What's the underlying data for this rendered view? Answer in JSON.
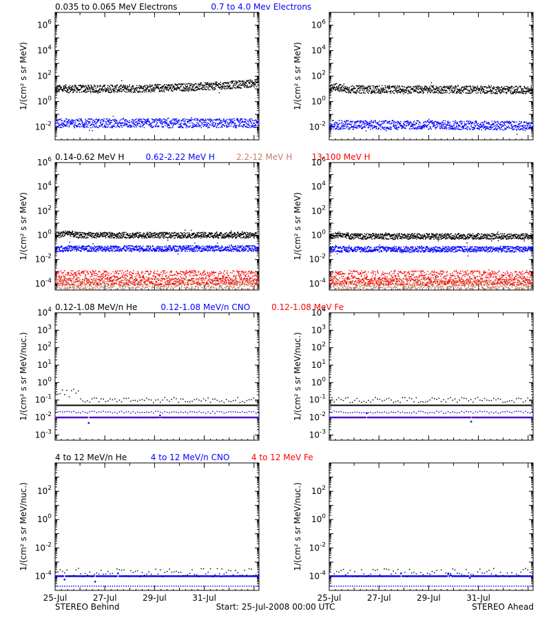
{
  "footer": {
    "left": "STEREO Behind",
    "center": "Start: 25-Jul-2008 00:00 UTC",
    "right": "STEREO Ahead"
  },
  "colors": {
    "black": "#000000",
    "blue": "#0000ff",
    "tan": "#c08060",
    "red": "#ff0000"
  },
  "chart_data": [
    {
      "type": "scatter",
      "id": "electrons",
      "legend": [
        {
          "text": "0.035 to 0.065 MeV Electrons",
          "color": "#000000"
        },
        {
          "text": "0.7 to 4.0 Mev Electrons",
          "color": "#0000ff"
        }
      ],
      "ylabel": "1/(cm² s sr MeV)",
      "yscale": "log",
      "ylim": [
        0.001,
        10000000
      ],
      "yticks": [
        {
          "exp": "-2",
          "v": 0.01
        },
        {
          "exp": "0",
          "v": 1
        },
        {
          "exp": "2",
          "v": 100
        },
        {
          "exp": "4",
          "v": 10000
        },
        {
          "exp": "6",
          "v": 1000000
        }
      ],
      "x_date_start": "25-Jul-2008",
      "xlim_days": [
        0,
        8.2
      ],
      "xticks": [
        "25-Jul",
        "27-Jul",
        "29-Jul",
        "31-Jul"
      ],
      "panels": [
        {
          "spacecraft": "STEREO Behind",
          "series": [
            {
              "color": "#000000",
              "base": 10,
              "end": 30,
              "spread": 0.1
            },
            {
              "color": "#0000ff",
              "base": 0.02,
              "end": 0.02,
              "spread": 0.12
            }
          ]
        },
        {
          "spacecraft": "STEREO Ahead",
          "series": [
            {
              "color": "#000000",
              "base": 9,
              "end": 8,
              "spread": 0.1,
              "spike": 20
            },
            {
              "color": "#0000ff",
              "base": 0.015,
              "end": 0.012,
              "spread": 0.12
            }
          ]
        }
      ]
    },
    {
      "type": "scatter",
      "id": "protons",
      "legend": [
        {
          "text": "0.14-0.62 MeV H",
          "color": "#000000"
        },
        {
          "text": "0.62-2.22 MeV H",
          "color": "#0000ff"
        },
        {
          "text": "2.2-12 MeV H",
          "color": "#c08060"
        },
        {
          "text": "13-100 MeV H",
          "color": "#ff0000"
        }
      ],
      "ylabel": "1/(cm² s sr MeV)",
      "yscale": "log",
      "ylim": [
        3e-05,
        1000000
      ],
      "yticks": [
        {
          "exp": "-4",
          "v": 0.0001
        },
        {
          "exp": "-2",
          "v": 0.01
        },
        {
          "exp": "0",
          "v": 1
        },
        {
          "exp": "2",
          "v": 100
        },
        {
          "exp": "4",
          "v": 10000
        },
        {
          "exp": "6",
          "v": 1000000
        }
      ],
      "x_date_start": "25-Jul-2008",
      "xlim_days": [
        0,
        8.2
      ],
      "xticks": [
        "25-Jul",
        "27-Jul",
        "29-Jul",
        "31-Jul"
      ],
      "panels": [
        {
          "spacecraft": "STEREO Behind",
          "series": [
            {
              "color": "#000000",
              "base": 1.0,
              "end": 1.0,
              "spread": 0.08,
              "bump": 2
            },
            {
              "color": "#0000ff",
              "base": 0.08,
              "end": 0.08,
              "spread": 0.08
            },
            {
              "color": "#c08060",
              "base": 0.0001,
              "end": 0.0001,
              "spread": 0.15
            },
            {
              "color": "#ff0000",
              "base": 0.0003,
              "end": 0.0003,
              "spread": 0.2
            }
          ]
        },
        {
          "spacecraft": "STEREO Ahead",
          "series": [
            {
              "color": "#000000",
              "base": 0.8,
              "end": 0.8,
              "spread": 0.08,
              "bump": 2
            },
            {
              "color": "#0000ff",
              "base": 0.07,
              "end": 0.07,
              "spread": 0.08
            },
            {
              "color": "#c08060",
              "base": 0.0001,
              "end": 0.0001,
              "spread": 0.15
            },
            {
              "color": "#ff0000",
              "base": 0.0003,
              "end": 0.0003,
              "spread": 0.2
            }
          ]
        }
      ]
    },
    {
      "type": "scatter",
      "id": "low-energy-ions",
      "legend": [
        {
          "text": "0.12-1.08 MeV/n He",
          "color": "#000000"
        },
        {
          "text": "0.12-1.08 MeV/n CNO",
          "color": "#0000ff"
        },
        {
          "text": "0.12-1.08 MeV Fe",
          "color": "#ff0000"
        }
      ],
      "ylabel": "1/(cm² s sr MeV/nuc.)",
      "yscale": "log",
      "ylim": [
        0.0005,
        10000
      ],
      "yticks": [
        {
          "exp": "-3",
          "v": 0.001
        },
        {
          "exp": "-2",
          "v": 0.01
        },
        {
          "exp": "-1",
          "v": 0.1
        },
        {
          "exp": "0",
          "v": 1
        },
        {
          "exp": "1",
          "v": 10
        },
        {
          "exp": "2",
          "v": 100
        },
        {
          "exp": "3",
          "v": 1000
        },
        {
          "exp": "4",
          "v": 10000
        }
      ],
      "x_date_start": "25-Jul-2008",
      "xlim_days": [
        0,
        8.2
      ],
      "xticks": [
        "25-Jul",
        "27-Jul",
        "29-Jul",
        "31-Jul"
      ],
      "panels": [
        {
          "spacecraft": "STEREO Behind",
          "floor": {
            "color": "#000000",
            "v": 0.05
          },
          "series": [
            {
              "color": "#000000",
              "base": 0.1,
              "end": 0.1,
              "spread": 0.05,
              "sparse": true,
              "early": 0.3
            },
            {
              "color": "#0000ff",
              "base": 0.02,
              "end": 0.02,
              "spread": 0.02,
              "sparse": true
            },
            {
              "color": "#0000ff",
              "base": 0.01,
              "end": 0.01,
              "spread": 0.0,
              "dense": true
            },
            {
              "color": "#ff0000",
              "base": 0.01,
              "end": 0.01,
              "spread": 0.0,
              "sparse": true
            }
          ]
        },
        {
          "spacecraft": "STEREO Ahead",
          "floor": {
            "color": "#000000",
            "v": 0.05
          },
          "series": [
            {
              "color": "#000000",
              "base": 0.1,
              "end": 0.1,
              "spread": 0.05,
              "sparse": true
            },
            {
              "color": "#0000ff",
              "base": 0.02,
              "end": 0.02,
              "spread": 0.02,
              "sparse": true
            },
            {
              "color": "#0000ff",
              "base": 0.01,
              "end": 0.01,
              "spread": 0.0,
              "dense": true
            },
            {
              "color": "#ff0000",
              "base": 0.01,
              "end": 0.01,
              "spread": 0.0,
              "sparse": true
            }
          ]
        }
      ]
    },
    {
      "type": "scatter",
      "id": "high-energy-ions",
      "legend": [
        {
          "text": "4 to 12 MeV/n He",
          "color": "#000000"
        },
        {
          "text": "4 to 12 MeV/n CNO",
          "color": "#0000ff"
        },
        {
          "text": "4 to 12 MeV Fe",
          "color": "#ff0000"
        }
      ],
      "ylabel": "1/(cm² s sr MeV/nuc.)",
      "yscale": "log",
      "ylim": [
        1e-05,
        10000
      ],
      "yticks": [
        {
          "exp": "-4",
          "v": 0.0001
        },
        {
          "exp": "-2",
          "v": 0.01
        },
        {
          "exp": "0",
          "v": 1
        },
        {
          "exp": "2",
          "v": 100
        }
      ],
      "x_date_start": "25-Jul-2008",
      "xlim_days": [
        0,
        8.2
      ],
      "xticks": [
        "25-Jul",
        "27-Jul",
        "29-Jul",
        "31-Jul"
      ],
      "panels": [
        {
          "spacecraft": "STEREO Behind",
          "series": [
            {
              "color": "#0000ff",
              "base": 0.0001,
              "end": 0.0001,
              "spread": 0.0,
              "dense": true
            },
            {
              "color": "#000000",
              "base": 0.00018,
              "end": 0.00018,
              "spread": 0.1,
              "sparse": true
            },
            {
              "color": "#0000ff",
              "base": 2e-05,
              "end": 2e-05,
              "spread": 0.0,
              "sparse": true
            }
          ]
        },
        {
          "spacecraft": "STEREO Ahead",
          "series": [
            {
              "color": "#0000ff",
              "base": 0.0001,
              "end": 0.0001,
              "spread": 0.0,
              "dense": true
            },
            {
              "color": "#000000",
              "base": 0.00018,
              "end": 0.00018,
              "spread": 0.1,
              "sparse": true
            },
            {
              "color": "#0000ff",
              "base": 2e-05,
              "end": 2e-05,
              "spread": 0.0,
              "sparse": true
            }
          ]
        }
      ]
    }
  ]
}
